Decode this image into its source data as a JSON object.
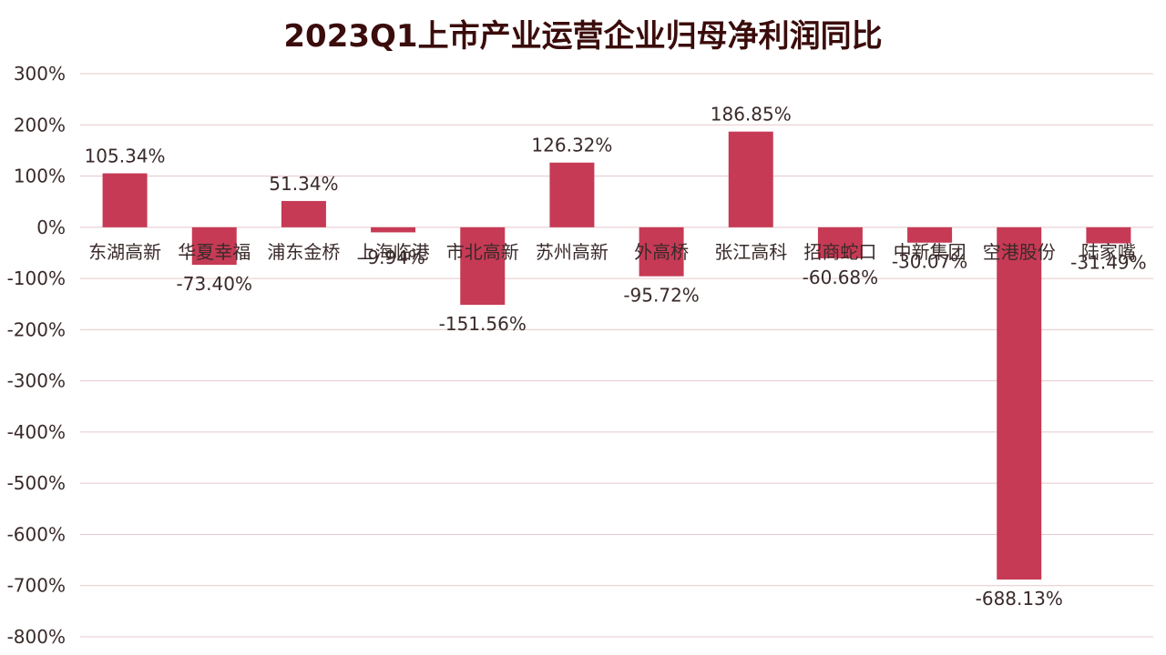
{
  "chart_data": {
    "type": "bar",
    "title": "2023Q1上市产业运营企业归母净利润同比",
    "categories": [
      "东湖高新",
      "华夏幸福",
      "浦东金桥",
      "上海临港",
      "市北高新",
      "苏州高新",
      "外高桥",
      "张江高科",
      "招商蛇口",
      "中新集团",
      "空港股份",
      "陆家嘴"
    ],
    "values": [
      105.34,
      -73.4,
      51.34,
      -9.94,
      -151.56,
      126.32,
      -95.72,
      186.85,
      -60.68,
      -30.07,
      -688.13,
      -31.49
    ],
    "data_labels": [
      "105.34%",
      "-73.40%",
      "51.34%",
      "-9.94%",
      "-151.56%",
      "126.32%",
      "-95.72%",
      "186.85%",
      "-60.68%",
      "-30.07%",
      "-688.13%",
      "-31.49%"
    ],
    "y_ticks": [
      "300%",
      "200%",
      "100%",
      "0%",
      "-100%",
      "-200%",
      "-300%",
      "-400%",
      "-500%",
      "-600%",
      "-700%",
      "-800%"
    ],
    "ylim": [
      -800,
      300
    ],
    "unit": "%",
    "grid": true,
    "legend": "none",
    "colors": {
      "bar": "#c63a55",
      "grid": "#e8c8cc",
      "title": "#3b0c0c",
      "text": "#3a2a2a"
    }
  }
}
